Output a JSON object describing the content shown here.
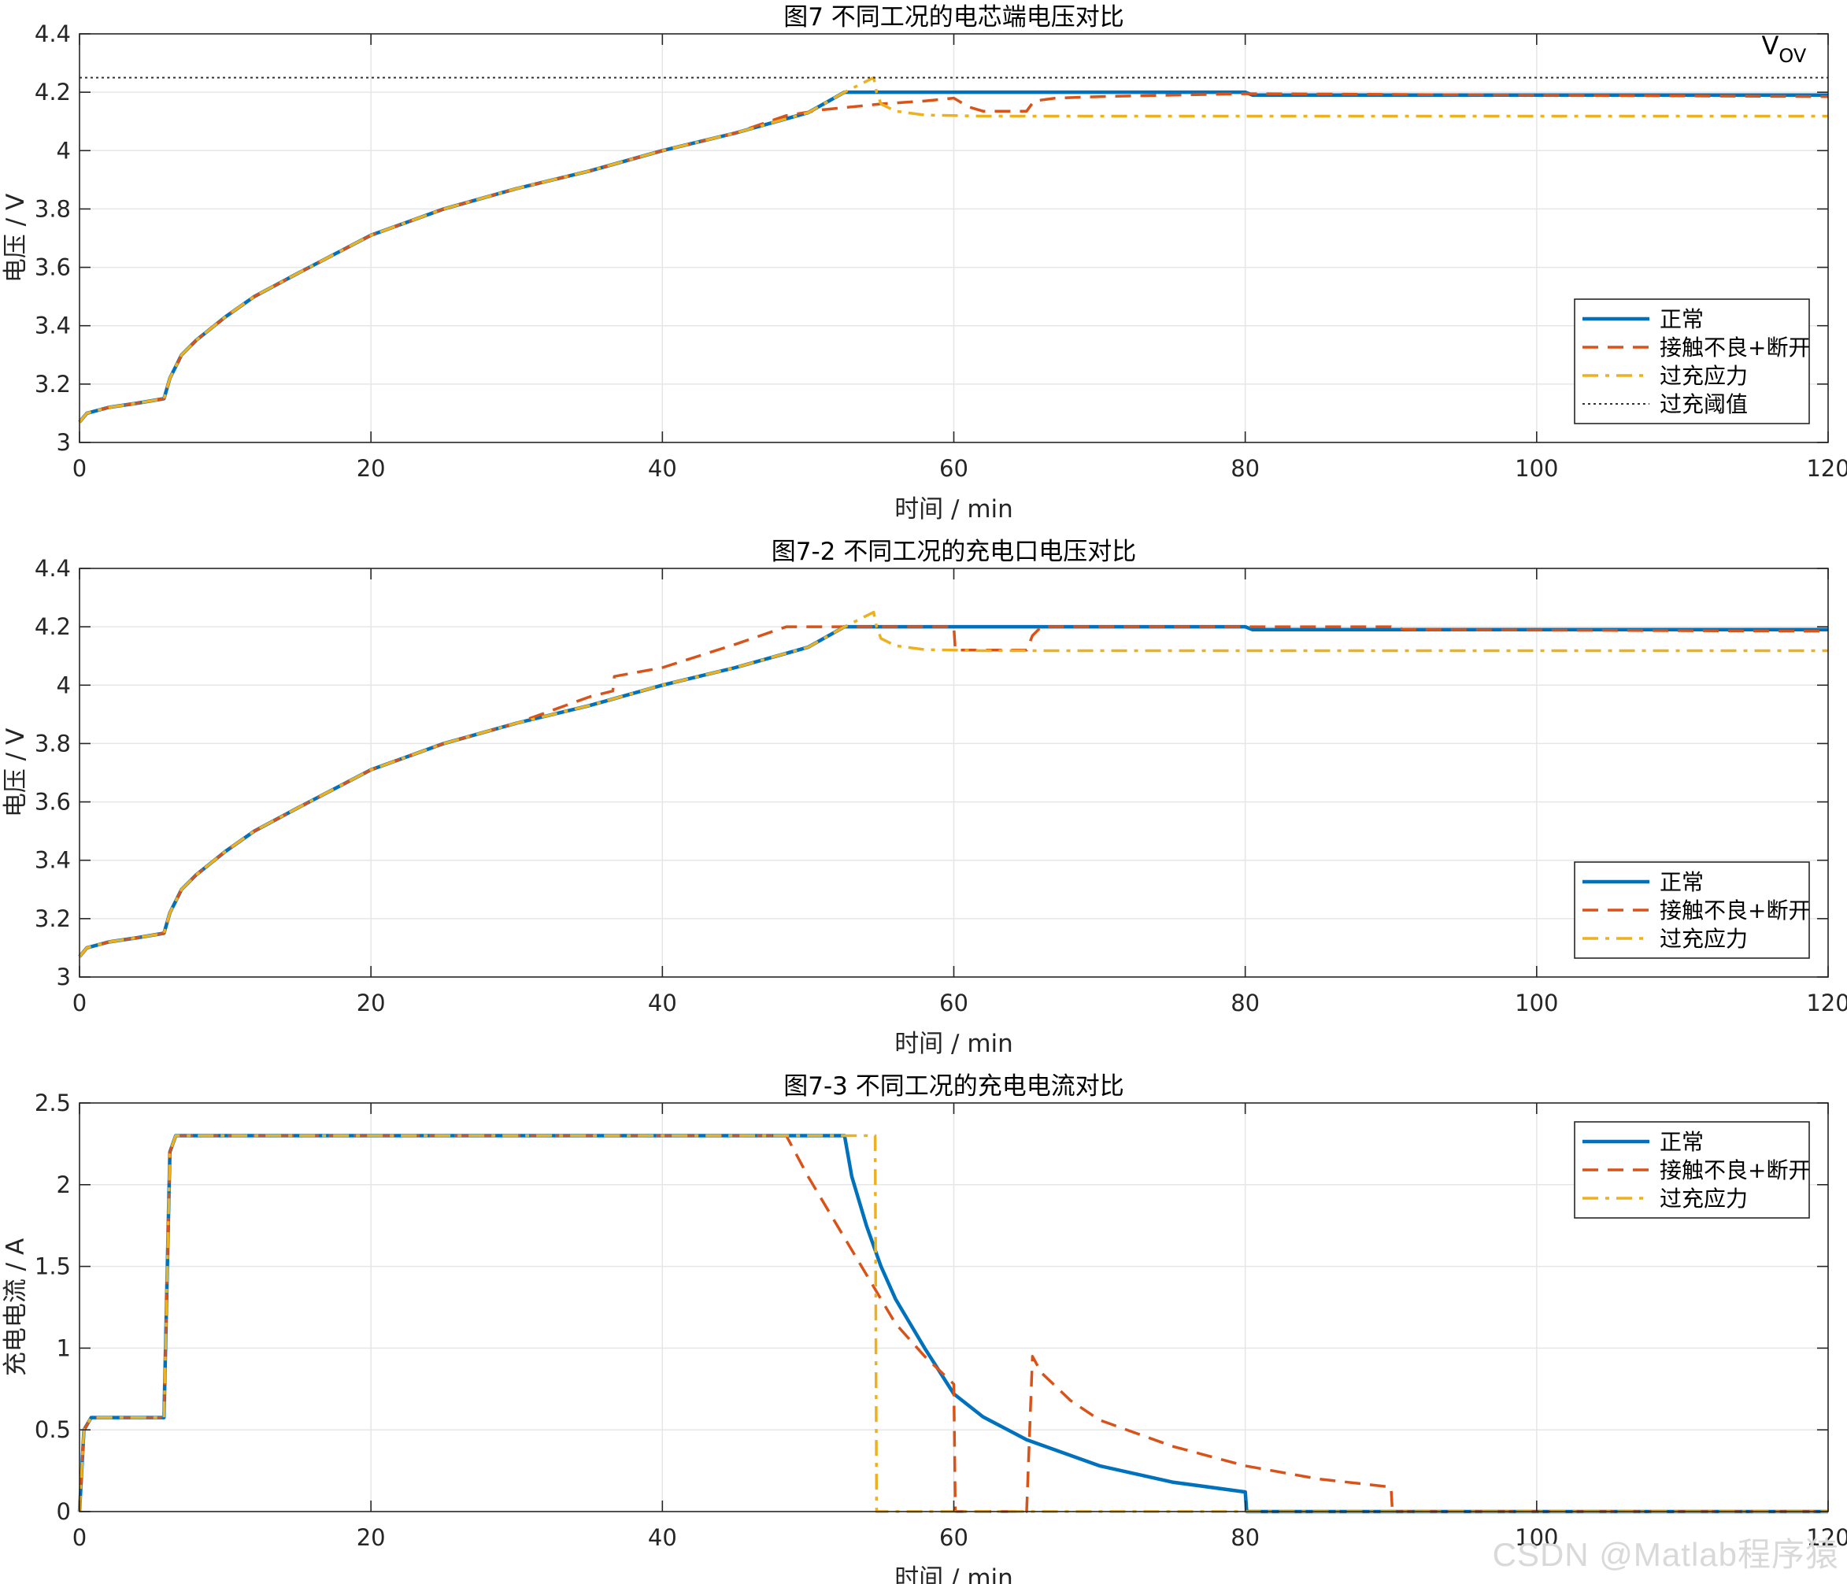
{
  "watermark": "CSDN @Matlab程序猿",
  "colors": {
    "normal": "#0072BD",
    "contact": "#D95319",
    "overcharge": "#EDB120",
    "threshold": "#333333",
    "grid": "#e6e6e6",
    "axis": "#262626"
  },
  "chart_data": [
    {
      "type": "line",
      "title": "图7 不同工况的电芯端电压对比",
      "xlabel": "时间 / min",
      "ylabel": "电压 / V",
      "xlim": [
        0,
        120
      ],
      "ylim": [
        3,
        4.4
      ],
      "xticks": [
        0,
        20,
        40,
        60,
        80,
        100,
        120
      ],
      "yticks": [
        3,
        3.2,
        3.4,
        3.6,
        3.8,
        4,
        4.2,
        4.4
      ],
      "ytick_labels": [
        "3",
        "3.2",
        "3.4",
        "3.6",
        "3.8",
        "4",
        "4.2",
        "4.4"
      ],
      "grid": true,
      "legend": "bottom-right",
      "annotations": [
        {
          "text": "V",
          "sub": "OV",
          "x": 118.5,
          "y": 4.34
        }
      ],
      "series": [
        {
          "name": "正常",
          "style": "solid",
          "color": "#0072BD",
          "points": [
            [
              0,
              3.07
            ],
            [
              0.5,
              3.1
            ],
            [
              2,
              3.12
            ],
            [
              4,
              3.135
            ],
            [
              5.8,
              3.15
            ],
            [
              6.2,
              3.22
            ],
            [
              7,
              3.3
            ],
            [
              8,
              3.35
            ],
            [
              10,
              3.43
            ],
            [
              12,
              3.5
            ],
            [
              15,
              3.58
            ],
            [
              20,
              3.71
            ],
            [
              25,
              3.8
            ],
            [
              30,
              3.87
            ],
            [
              35,
              3.93
            ],
            [
              40,
              4.0
            ],
            [
              45,
              4.06
            ],
            [
              50,
              4.13
            ],
            [
              52.5,
              4.2
            ],
            [
              80,
              4.2
            ],
            [
              80.5,
              4.19
            ],
            [
              120,
              4.19
            ]
          ]
        },
        {
          "name": "接触不良+断开",
          "style": "dashed",
          "color": "#D95319",
          "points": [
            [
              0,
              3.07
            ],
            [
              0.5,
              3.1
            ],
            [
              2,
              3.12
            ],
            [
              4,
              3.135
            ],
            [
              5.8,
              3.15
            ],
            [
              6.2,
              3.22
            ],
            [
              7,
              3.3
            ],
            [
              8,
              3.35
            ],
            [
              10,
              3.43
            ],
            [
              12,
              3.5
            ],
            [
              15,
              3.58
            ],
            [
              20,
              3.71
            ],
            [
              25,
              3.8
            ],
            [
              30,
              3.87
            ],
            [
              35,
              3.93
            ],
            [
              40,
              4.0
            ],
            [
              45,
              4.06
            ],
            [
              48.5,
              4.12
            ],
            [
              51,
              4.14
            ],
            [
              55,
              4.16
            ],
            [
              58,
              4.17
            ],
            [
              60,
              4.18
            ],
            [
              61,
              4.15
            ],
            [
              62,
              4.135
            ],
            [
              65,
              4.135
            ],
            [
              65.5,
              4.17
            ],
            [
              67,
              4.18
            ],
            [
              70,
              4.185
            ],
            [
              80,
              4.195
            ],
            [
              120,
              4.185
            ]
          ]
        },
        {
          "name": "过充应力",
          "style": "dashdot",
          "color": "#EDB120",
          "points": [
            [
              0,
              3.07
            ],
            [
              0.5,
              3.1
            ],
            [
              2,
              3.12
            ],
            [
              4,
              3.135
            ],
            [
              5.8,
              3.15
            ],
            [
              6.2,
              3.22
            ],
            [
              7,
              3.3
            ],
            [
              8,
              3.35
            ],
            [
              10,
              3.43
            ],
            [
              12,
              3.5
            ],
            [
              15,
              3.58
            ],
            [
              20,
              3.71
            ],
            [
              25,
              3.8
            ],
            [
              30,
              3.87
            ],
            [
              35,
              3.93
            ],
            [
              40,
              4.0
            ],
            [
              45,
              4.06
            ],
            [
              50,
              4.13
            ],
            [
              52.5,
              4.2
            ],
            [
              54.5,
              4.25
            ],
            [
              54.7,
              4.2
            ],
            [
              55,
              4.16
            ],
            [
              56,
              4.135
            ],
            [
              58,
              4.122
            ],
            [
              62,
              4.118
            ],
            [
              120,
              4.118
            ]
          ]
        },
        {
          "name": "过充阈值",
          "style": "dotted",
          "color": "#333333",
          "points": [
            [
              0,
              4.25
            ],
            [
              120,
              4.25
            ]
          ]
        }
      ]
    },
    {
      "type": "line",
      "title": "图7-2 不同工况的充电口电压对比",
      "xlabel": "时间 / min",
      "ylabel": "电压 / V",
      "xlim": [
        0,
        120
      ],
      "ylim": [
        3,
        4.4
      ],
      "xticks": [
        0,
        20,
        40,
        60,
        80,
        100,
        120
      ],
      "yticks": [
        3,
        3.2,
        3.4,
        3.6,
        3.8,
        4,
        4.2,
        4.4
      ],
      "ytick_labels": [
        "3",
        "3.2",
        "3.4",
        "3.6",
        "3.8",
        "4",
        "4.2",
        "4.4"
      ],
      "grid": true,
      "legend": "bottom-right",
      "series": [
        {
          "name": "正常",
          "style": "solid",
          "color": "#0072BD",
          "points": [
            [
              0,
              3.07
            ],
            [
              0.5,
              3.1
            ],
            [
              2,
              3.12
            ],
            [
              4,
              3.135
            ],
            [
              5.8,
              3.15
            ],
            [
              6.2,
              3.22
            ],
            [
              7,
              3.3
            ],
            [
              8,
              3.35
            ],
            [
              10,
              3.43
            ],
            [
              12,
              3.5
            ],
            [
              15,
              3.58
            ],
            [
              20,
              3.71
            ],
            [
              25,
              3.8
            ],
            [
              30,
              3.87
            ],
            [
              35,
              3.93
            ],
            [
              40,
              4.0
            ],
            [
              45,
              4.06
            ],
            [
              50,
              4.13
            ],
            [
              52.5,
              4.2
            ],
            [
              80,
              4.2
            ],
            [
              80.5,
              4.19
            ],
            [
              120,
              4.19
            ]
          ]
        },
        {
          "name": "接触不良+断开",
          "style": "dashed",
          "color": "#D95319",
          "points": [
            [
              0,
              3.07
            ],
            [
              0.5,
              3.1
            ],
            [
              2,
              3.12
            ],
            [
              4,
              3.135
            ],
            [
              5.8,
              3.15
            ],
            [
              6.2,
              3.22
            ],
            [
              7,
              3.3
            ],
            [
              8,
              3.35
            ],
            [
              10,
              3.43
            ],
            [
              12,
              3.5
            ],
            [
              15,
              3.58
            ],
            [
              20,
              3.71
            ],
            [
              25,
              3.8
            ],
            [
              30,
              3.87
            ],
            [
              35,
              3.96
            ],
            [
              36.6,
              3.98
            ],
            [
              36.7,
              4.03
            ],
            [
              40,
              4.06
            ],
            [
              45,
              4.14
            ],
            [
              48.5,
              4.2
            ],
            [
              60,
              4.2
            ],
            [
              60.1,
              4.12
            ],
            [
              65,
              4.12
            ],
            [
              65.4,
              4.17
            ],
            [
              66,
              4.2
            ],
            [
              90,
              4.2
            ],
            [
              91,
              4.19
            ],
            [
              120,
              4.185
            ]
          ]
        },
        {
          "name": "过充应力",
          "style": "dashdot",
          "color": "#EDB120",
          "points": [
            [
              0,
              3.07
            ],
            [
              0.5,
              3.1
            ],
            [
              2,
              3.12
            ],
            [
              4,
              3.135
            ],
            [
              5.8,
              3.15
            ],
            [
              6.2,
              3.22
            ],
            [
              7,
              3.3
            ],
            [
              8,
              3.35
            ],
            [
              10,
              3.43
            ],
            [
              12,
              3.5
            ],
            [
              15,
              3.58
            ],
            [
              20,
              3.71
            ],
            [
              25,
              3.8
            ],
            [
              30,
              3.87
            ],
            [
              35,
              3.93
            ],
            [
              40,
              4.0
            ],
            [
              45,
              4.06
            ],
            [
              50,
              4.13
            ],
            [
              52.5,
              4.2
            ],
            [
              54.5,
              4.25
            ],
            [
              54.7,
              4.2
            ],
            [
              55,
              4.16
            ],
            [
              56,
              4.135
            ],
            [
              58,
              4.122
            ],
            [
              62,
              4.118
            ],
            [
              120,
              4.118
            ]
          ]
        }
      ]
    },
    {
      "type": "line",
      "title": "图7-3 不同工况的充电电流对比",
      "xlabel": "时间 / min",
      "ylabel": "充电电流 / A",
      "xlim": [
        0,
        120
      ],
      "ylim": [
        0,
        2.5
      ],
      "xticks": [
        0,
        20,
        40,
        60,
        80,
        100,
        120
      ],
      "yticks": [
        0,
        0.5,
        1,
        1.5,
        2,
        2.5
      ],
      "ytick_labels": [
        "0",
        "0.5",
        "1",
        "1.5",
        "2",
        "2.5"
      ],
      "grid": true,
      "legend": "top-right",
      "series": [
        {
          "name": "正常",
          "style": "solid",
          "color": "#0072BD",
          "points": [
            [
              0,
              0
            ],
            [
              0.3,
              0.5
            ],
            [
              0.8,
              0.575
            ],
            [
              5.8,
              0.575
            ],
            [
              6.2,
              2.2
            ],
            [
              6.6,
              2.3
            ],
            [
              52.5,
              2.3
            ],
            [
              53,
              2.05
            ],
            [
              54,
              1.75
            ],
            [
              55,
              1.5
            ],
            [
              56,
              1.3
            ],
            [
              58,
              1.0
            ],
            [
              60,
              0.72
            ],
            [
              62,
              0.58
            ],
            [
              65,
              0.44
            ],
            [
              70,
              0.28
            ],
            [
              75,
              0.18
            ],
            [
              80,
              0.12
            ],
            [
              80.1,
              0
            ],
            [
              120,
              0
            ]
          ]
        },
        {
          "name": "接触不良+断开",
          "style": "dashed",
          "color": "#D95319",
          "points": [
            [
              0,
              0
            ],
            [
              0.3,
              0.5
            ],
            [
              0.8,
              0.575
            ],
            [
              5.8,
              0.575
            ],
            [
              6.2,
              2.2
            ],
            [
              6.6,
              2.3
            ],
            [
              48.5,
              2.3
            ],
            [
              50,
              2.05
            ],
            [
              52,
              1.75
            ],
            [
              54,
              1.45
            ],
            [
              56,
              1.15
            ],
            [
              58,
              0.95
            ],
            [
              60,
              0.78
            ],
            [
              60.1,
              0
            ],
            [
              65,
              0
            ],
            [
              65.4,
              0.95
            ],
            [
              66,
              0.85
            ],
            [
              68,
              0.68
            ],
            [
              70,
              0.56
            ],
            [
              75,
              0.4
            ],
            [
              80,
              0.28
            ],
            [
              85,
              0.2
            ],
            [
              90,
              0.15
            ],
            [
              90.1,
              0
            ],
            [
              120,
              0
            ]
          ]
        },
        {
          "name": "过充应力",
          "style": "dashdot",
          "color": "#EDB120",
          "points": [
            [
              0,
              0
            ],
            [
              0.3,
              0.5
            ],
            [
              0.8,
              0.575
            ],
            [
              5.8,
              0.575
            ],
            [
              6.2,
              2.2
            ],
            [
              6.6,
              2.3
            ],
            [
              54.6,
              2.3
            ],
            [
              54.7,
              0
            ],
            [
              120,
              0
            ]
          ]
        }
      ]
    }
  ]
}
